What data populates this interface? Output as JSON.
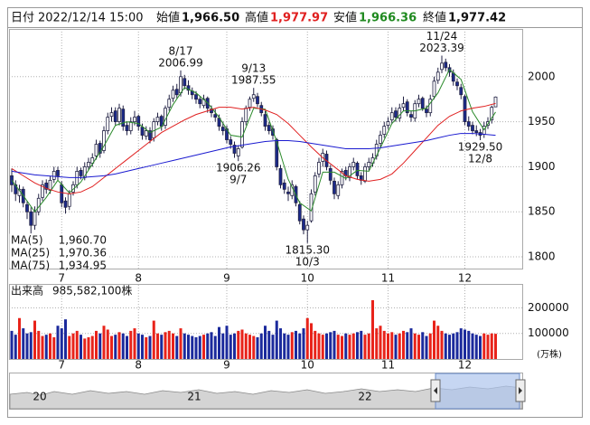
{
  "header": {
    "date_label": "日付",
    "date": "2022/12/14 15:00",
    "open_label": "始値",
    "open": "1,966.50",
    "high_label": "高値",
    "high": "1,977.97",
    "low_label": "安値",
    "low": "1,966.36",
    "close_label": "終値",
    "close": "1,977.42"
  },
  "chart_data": {
    "type": "candlestick",
    "categories": [
      null,
      null,
      null,
      null,
      null,
      null,
      null,
      null,
      null,
      null,
      null,
      null,
      null,
      "7",
      null,
      null,
      null,
      null,
      null,
      null,
      null,
      null,
      null,
      null,
      null,
      null,
      null,
      null,
      null,
      null,
      null,
      null,
      null,
      "8",
      null,
      null,
      null,
      null,
      null,
      null,
      null,
      null,
      null,
      null,
      null,
      null,
      null,
      null,
      null,
      null,
      null,
      null,
      null,
      null,
      null,
      null,
      "9",
      null,
      null,
      null,
      null,
      null,
      null,
      null,
      null,
      null,
      null,
      null,
      null,
      null,
      null,
      null,
      null,
      null,
      null,
      null,
      null,
      "10",
      null,
      null,
      null,
      null,
      null,
      null,
      null,
      null,
      null,
      null,
      null,
      null,
      null,
      null,
      null,
      null,
      null,
      null,
      null,
      null,
      "11",
      null,
      null,
      null,
      null,
      null,
      null,
      null,
      null,
      null,
      null,
      null,
      null,
      null,
      null,
      null,
      null,
      null,
      null,
      null,
      "12",
      null,
      null,
      null,
      null,
      null,
      null,
      null,
      null
    ],
    "candles": [
      [
        1890,
        1898,
        1872,
        1880
      ],
      [
        1880,
        1885,
        1862,
        1870
      ],
      [
        1868,
        1880,
        1860,
        1875
      ],
      [
        1875,
        1878,
        1855,
        1860
      ],
      [
        1858,
        1862,
        1842,
        1850
      ],
      [
        1850,
        1855,
        1826,
        1835
      ],
      [
        1835,
        1856,
        1830,
        1850
      ],
      [
        1850,
        1870,
        1846,
        1865
      ],
      [
        1866,
        1885,
        1862,
        1880
      ],
      [
        1882,
        1886,
        1870,
        1875
      ],
      [
        1874,
        1890,
        1870,
        1885
      ],
      [
        1886,
        1900,
        1882,
        1895
      ],
      [
        1896,
        1900,
        1885,
        1890
      ],
      [
        1880,
        1884,
        1855,
        1860
      ],
      [
        1862,
        1866,
        1848,
        1855
      ],
      [
        1856,
        1874,
        1852,
        1870
      ],
      [
        1872,
        1884,
        1868,
        1880
      ],
      [
        1880,
        1900,
        1876,
        1895
      ],
      [
        1896,
        1899,
        1886,
        1890
      ],
      [
        1888,
        1905,
        1885,
        1900
      ],
      [
        1900,
        1910,
        1896,
        1905
      ],
      [
        1904,
        1915,
        1900,
        1910
      ],
      [
        1912,
        1930,
        1908,
        1925
      ],
      [
        1926,
        1929,
        1910,
        1915
      ],
      [
        1918,
        1945,
        1915,
        1940
      ],
      [
        1940,
        1960,
        1936,
        1955
      ],
      [
        1956,
        1966,
        1950,
        1960
      ],
      [
        1962,
        1966,
        1946,
        1950
      ],
      [
        1950,
        1970,
        1946,
        1965
      ],
      [
        1964,
        1968,
        1940,
        1945
      ],
      [
        1946,
        1950,
        1935,
        1940
      ],
      [
        1940,
        1955,
        1936,
        1950
      ],
      [
        1950,
        1962,
        1946,
        1955
      ],
      [
        1956,
        1958,
        1940,
        1945
      ],
      [
        1944,
        1948,
        1930,
        1935
      ],
      [
        1934,
        1945,
        1930,
        1940
      ],
      [
        1940,
        1944,
        1926,
        1930
      ],
      [
        1932,
        1954,
        1928,
        1950
      ],
      [
        1950,
        1960,
        1946,
        1955
      ],
      [
        1956,
        1958,
        1940,
        1945
      ],
      [
        1946,
        1968,
        1942,
        1965
      ],
      [
        1966,
        1980,
        1962,
        1975
      ],
      [
        1976,
        1990,
        1972,
        1985
      ],
      [
        1986,
        1992,
        1976,
        1980
      ],
      [
        1982,
        2006.99,
        1978,
        2000
      ],
      [
        1998,
        2002,
        1986,
        1990
      ],
      [
        1990,
        1996,
        1980,
        1985
      ],
      [
        1984,
        1988,
        1975,
        1980
      ],
      [
        1980,
        1984,
        1970,
        1975
      ],
      [
        1975,
        1978,
        1965,
        1970
      ],
      [
        1968,
        1980,
        1965,
        1975
      ],
      [
        1976,
        1978,
        1960,
        1965
      ],
      [
        1964,
        1968,
        1955,
        1960
      ],
      [
        1958,
        1964,
        1950,
        1955
      ],
      [
        1954,
        1958,
        1940,
        1945
      ],
      [
        1944,
        1950,
        1935,
        1940
      ],
      [
        1942,
        1946,
        1926,
        1930
      ],
      [
        1930,
        1934,
        1920,
        1925
      ],
      [
        1924,
        1928,
        1910,
        1915
      ],
      [
        1912,
        1924,
        1906.26,
        1920
      ],
      [
        1922,
        1955,
        1920,
        1950
      ],
      [
        1950,
        1968,
        1946,
        1965
      ],
      [
        1966,
        1978,
        1962,
        1975
      ],
      [
        1976,
        1987.55,
        1972,
        1980
      ],
      [
        1978,
        1982,
        1966,
        1970
      ],
      [
        1968,
        1972,
        1956,
        1960
      ],
      [
        1958,
        1962,
        1940,
        1945
      ],
      [
        1946,
        1950,
        1936,
        1940
      ],
      [
        1942,
        1946,
        1930,
        1935
      ],
      [
        1930,
        1932,
        1896,
        1900
      ],
      [
        1898,
        1902,
        1876,
        1880
      ],
      [
        1882,
        1886,
        1870,
        1875
      ],
      [
        1872,
        1878,
        1862,
        1870
      ],
      [
        1868,
        1885,
        1864,
        1880
      ],
      [
        1878,
        1880,
        1856,
        1860
      ],
      [
        1858,
        1862,
        1836,
        1840
      ],
      [
        1842,
        1846,
        1825,
        1830
      ],
      [
        1830,
        1840,
        1815.3,
        1835
      ],
      [
        1840,
        1875,
        1838,
        1870
      ],
      [
        1872,
        1894,
        1868,
        1890
      ],
      [
        1892,
        1910,
        1888,
        1905
      ],
      [
        1906,
        1920,
        1900,
        1915
      ],
      [
        1914,
        1918,
        1896,
        1900
      ],
      [
        1898,
        1902,
        1880,
        1885
      ],
      [
        1884,
        1888,
        1864,
        1870
      ],
      [
        1868,
        1884,
        1864,
        1880
      ],
      [
        1880,
        1898,
        1876,
        1895
      ],
      [
        1896,
        1900,
        1885,
        1890
      ],
      [
        1888,
        1904,
        1884,
        1900
      ],
      [
        1900,
        1910,
        1896,
        1905
      ],
      [
        1904,
        1906,
        1886,
        1890
      ],
      [
        1890,
        1894,
        1880,
        1885
      ],
      [
        1884,
        1904,
        1882,
        1900
      ],
      [
        1900,
        1910,
        1896,
        1905
      ],
      [
        1904,
        1915,
        1900,
        1910
      ],
      [
        1912,
        1930,
        1908,
        1925
      ],
      [
        1926,
        1940,
        1922,
        1935
      ],
      [
        1936,
        1950,
        1932,
        1945
      ],
      [
        1946,
        1955,
        1942,
        1950
      ],
      [
        1952,
        1966,
        1948,
        1960
      ],
      [
        1962,
        1966,
        1950,
        1955
      ],
      [
        1954,
        1970,
        1950,
        1965
      ],
      [
        1966,
        1978,
        1962,
        1970
      ],
      [
        1972,
        1975,
        1956,
        1960
      ],
      [
        1958,
        1962,
        1950,
        1955
      ],
      [
        1954,
        1974,
        1950,
        1970
      ],
      [
        1970,
        1980,
        1966,
        1975
      ],
      [
        1976,
        1978,
        1962,
        1965
      ],
      [
        1964,
        1968,
        1955,
        1960
      ],
      [
        1960,
        1980,
        1956,
        1975
      ],
      [
        1978,
        2000,
        1975,
        1995
      ],
      [
        1996,
        2010,
        1992,
        2005
      ],
      [
        2008,
        2023.39,
        2004,
        2015
      ],
      [
        2016,
        2020,
        2006,
        2010
      ],
      [
        2010,
        2014,
        2000,
        2005
      ],
      [
        2004,
        2008,
        1990,
        1995
      ],
      [
        1994,
        1998,
        1985,
        1990
      ],
      [
        1988,
        1992,
        1975,
        1980
      ],
      [
        1978,
        1980,
        1946,
        1950
      ],
      [
        1950,
        1956,
        1940,
        1945
      ],
      [
        1946,
        1950,
        1936,
        1940
      ],
      [
        1940,
        1946,
        1934,
        1938
      ],
      [
        1938,
        1942,
        1929.5,
        1935
      ],
      [
        1936,
        1950,
        1932,
        1945
      ],
      [
        1946,
        1955,
        1942,
        1950
      ],
      [
        1952,
        1968,
        1948,
        1966
      ],
      [
        1966.5,
        1977.97,
        1966.36,
        1977.42
      ]
    ],
    "up_color": "#ffffff",
    "down_color": "#1b2a8c",
    "edge_color": "#222244",
    "ylim": [
      1787,
      2053
    ],
    "yticks": [
      1800,
      1850,
      1900,
      1950,
      2000
    ],
    "grid": true,
    "moving_averages": {
      "x": [
        0,
        3,
        6,
        9,
        12,
        15,
        18,
        21,
        24,
        27,
        30,
        33,
        36,
        39,
        42,
        45,
        48,
        51,
        54,
        57,
        60,
        63,
        66,
        69,
        72,
        75,
        78,
        81,
        84,
        87,
        90,
        93,
        96,
        99,
        102,
        105,
        108,
        111,
        114,
        117,
        120,
        123,
        126
      ],
      "series": [
        {
          "name": "MA(5)",
          "color": "#2a8a2a",
          "current": {
            "value": 1960.7,
            "label": "1,960.70"
          },
          "values": [
            1885,
            1868,
            1850,
            1866,
            1885,
            1871,
            1883,
            1903,
            1923,
            1946,
            1950,
            1948,
            1938,
            1944,
            1969,
            1988,
            1982,
            1971,
            1955,
            1935,
            1933,
            1965,
            1964,
            1928,
            1886,
            1860,
            1851,
            1894,
            1894,
            1887,
            1896,
            1895,
            1921,
            1948,
            1962,
            1962,
            1965,
            1982,
            2008,
            1997,
            1961,
            1941,
            1960.7
          ]
        },
        {
          "name": "MA(25)",
          "color": "#e02020",
          "current": {
            "value": 1970.36,
            "label": "1,970.36"
          },
          "values": [
            1898,
            1890,
            1882,
            1876,
            1872,
            1870,
            1872,
            1878,
            1888,
            1898,
            1908,
            1918,
            1928,
            1938,
            1945,
            1952,
            1958,
            1962,
            1966,
            1966,
            1964,
            1966,
            1963,
            1958,
            1948,
            1935,
            1922,
            1910,
            1900,
            1890,
            1886,
            1884,
            1886,
            1892,
            1904,
            1918,
            1932,
            1946,
            1956,
            1962,
            1965,
            1967,
            1970.36
          ]
        },
        {
          "name": "MA(75)",
          "color": "#1a1ad0",
          "current": {
            "value": 1934.95,
            "label": "1,934.95"
          },
          "values": [
            1895,
            1893,
            1891,
            1890,
            1889,
            1888,
            1888,
            1889,
            1890,
            1892,
            1895,
            1898,
            1901,
            1904,
            1907,
            1910,
            1913,
            1916,
            1919,
            1922,
            1924,
            1926,
            1928,
            1929,
            1929,
            1928,
            1926,
            1924,
            1922,
            1920,
            1920,
            1920,
            1921,
            1923,
            1925,
            1927,
            1929,
            1932,
            1935,
            1937,
            1937,
            1936,
            1934.95
          ]
        }
      ]
    },
    "annotations": [
      {
        "date": "8/17",
        "value": 2006.99,
        "label": "2006.99"
      },
      {
        "date": "9/13",
        "value": 1987.55,
        "label": "1987.55"
      },
      {
        "date": "9/7",
        "value": 1906.26,
        "label": "1906.26"
      },
      {
        "date": "10/3",
        "value": 1815.3,
        "label": "1815.30"
      },
      {
        "date": "11/24",
        "value": 2023.39,
        "label": "2023.39"
      },
      {
        "date": "12/8",
        "value": 1929.5,
        "label": "1929.50"
      }
    ],
    "volume": {
      "title": "出来高",
      "total": "985,582,100株",
      "unit": "(万株)",
      "up_color": "#e8231a",
      "down_color": "#1b2a9c",
      "ylim": [
        0,
        290000
      ],
      "yticks": [
        100000,
        200000
      ],
      "values": [
        110000,
        95000,
        160000,
        120000,
        100000,
        105000,
        150000,
        110000,
        90000,
        95000,
        100000,
        85000,
        130000,
        120000,
        155000,
        90000,
        100000,
        110000,
        95000,
        80000,
        85000,
        90000,
        110000,
        100000,
        130000,
        115000,
        90000,
        95000,
        105000,
        100000,
        90000,
        110000,
        120000,
        100000,
        95000,
        85000,
        90000,
        150000,
        100000,
        95000,
        105000,
        110000,
        100000,
        90000,
        120000,
        100000,
        95000,
        90000,
        85000,
        90000,
        95000,
        100000,
        105000,
        90000,
        125000,
        100000,
        130000,
        95000,
        100000,
        110000,
        115000,
        100000,
        95000,
        90000,
        85000,
        100000,
        130000,
        110000,
        95000,
        150000,
        120000,
        100000,
        95000,
        105000,
        110000,
        100000,
        120000,
        160000,
        140000,
        110000,
        100000,
        95000,
        100000,
        105000,
        110000,
        95000,
        90000,
        100000,
        95000,
        100000,
        105000,
        110000,
        95000,
        100000,
        230000,
        120000,
        130000,
        110000,
        100000,
        105000,
        95000,
        100000,
        110000,
        105000,
        120000,
        100000,
        95000,
        105000,
        90000,
        100000,
        150000,
        130000,
        110000,
        100000,
        95000,
        100000,
        105000,
        120000,
        115000,
        110000,
        100000,
        95000,
        90000,
        100000,
        95000,
        100000,
        98558
      ]
    }
  },
  "navigator": {
    "labels": [
      "20",
      "21",
      "22"
    ]
  }
}
